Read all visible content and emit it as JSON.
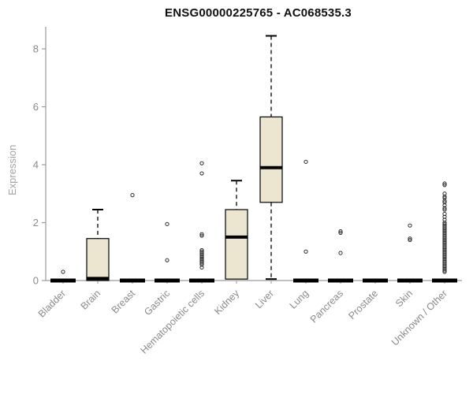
{
  "title": "ENSG00000225765 - AC068535.3",
  "chart_data": {
    "type": "boxplot",
    "title": "ENSG00000225765 - AC068535.3",
    "xlabel": "",
    "ylabel": "Expression",
    "ylim": [
      0,
      8.6
    ],
    "yticks": [
      0,
      2,
      4,
      6,
      8
    ],
    "grid": false,
    "legend": false,
    "box_fill": "#ece6d0",
    "box_stroke": "#000000",
    "axis_color": "#9b9b9b",
    "tick_label_color": "#8a8a8a",
    "outlier_color": "#2b2b2b",
    "categories": [
      "Bladder",
      "Brain",
      "Breast",
      "Gastric",
      "Hematopoietic cells",
      "Kidney",
      "Liver",
      "Lung",
      "Pancreas",
      "Prostate",
      "Skin",
      "Unknown / Other"
    ],
    "boxes": [
      {
        "category": "Bladder",
        "low": 0,
        "q1": 0,
        "median": 0,
        "q3": 0,
        "high": 0,
        "outliers": [
          0.3
        ]
      },
      {
        "category": "Brain",
        "low": 0,
        "q1": 0,
        "median": 0.07,
        "q3": 1.45,
        "high": 2.45,
        "outliers": []
      },
      {
        "category": "Breast",
        "low": 0,
        "q1": 0,
        "median": 0,
        "q3": 0,
        "high": 0,
        "outliers": [
          2.95
        ]
      },
      {
        "category": "Gastric",
        "low": 0,
        "q1": 0,
        "median": 0,
        "q3": 0,
        "high": 0,
        "outliers": [
          0.7,
          1.95
        ]
      },
      {
        "category": "Hematopoietic cells",
        "low": 0,
        "q1": 0,
        "median": 0,
        "q3": 0,
        "high": 0,
        "outliers": [
          0.45,
          0.55,
          0.6,
          0.65,
          0.7,
          0.75,
          0.8,
          0.85,
          0.9,
          0.95,
          1.0,
          1.05,
          1.55,
          1.6,
          3.7,
          4.05
        ]
      },
      {
        "category": "Kidney",
        "low": 0.05,
        "q1": 0.05,
        "median": 1.5,
        "q3": 2.45,
        "high": 3.45,
        "outliers": []
      },
      {
        "category": "Liver",
        "low": 0.05,
        "q1": 2.7,
        "median": 3.9,
        "q3": 5.65,
        "high": 8.45,
        "outliers": []
      },
      {
        "category": "Lung",
        "low": 0,
        "q1": 0,
        "median": 0,
        "q3": 0,
        "high": 0,
        "outliers": [
          1.0,
          4.1
        ]
      },
      {
        "category": "Pancreas",
        "low": 0,
        "q1": 0,
        "median": 0,
        "q3": 0,
        "high": 0,
        "outliers": [
          0.95,
          1.65,
          1.7
        ]
      },
      {
        "category": "Prostate",
        "low": 0,
        "q1": 0,
        "median": 0,
        "q3": 0,
        "high": 0,
        "outliers": []
      },
      {
        "category": "Skin",
        "low": 0,
        "q1": 0,
        "median": 0,
        "q3": 0,
        "high": 0,
        "outliers": [
          1.4,
          1.45,
          1.9
        ]
      },
      {
        "category": "Unknown / Other",
        "low": 0,
        "q1": 0,
        "median": 0,
        "q3": 0,
        "high": 0,
        "outliers": [
          0.3,
          0.35,
          0.4,
          0.45,
          0.5,
          0.55,
          0.6,
          0.65,
          0.7,
          0.75,
          0.8,
          0.85,
          0.9,
          0.95,
          1.0,
          1.05,
          1.1,
          1.15,
          1.2,
          1.25,
          1.3,
          1.35,
          1.4,
          1.45,
          1.5,
          1.55,
          1.6,
          1.65,
          1.7,
          1.75,
          1.8,
          1.85,
          1.9,
          1.95,
          2.0,
          2.1,
          2.2,
          2.3,
          2.45,
          2.5,
          2.6,
          2.7,
          2.75,
          2.85,
          2.9,
          3.0,
          3.3,
          3.35
        ]
      }
    ]
  }
}
